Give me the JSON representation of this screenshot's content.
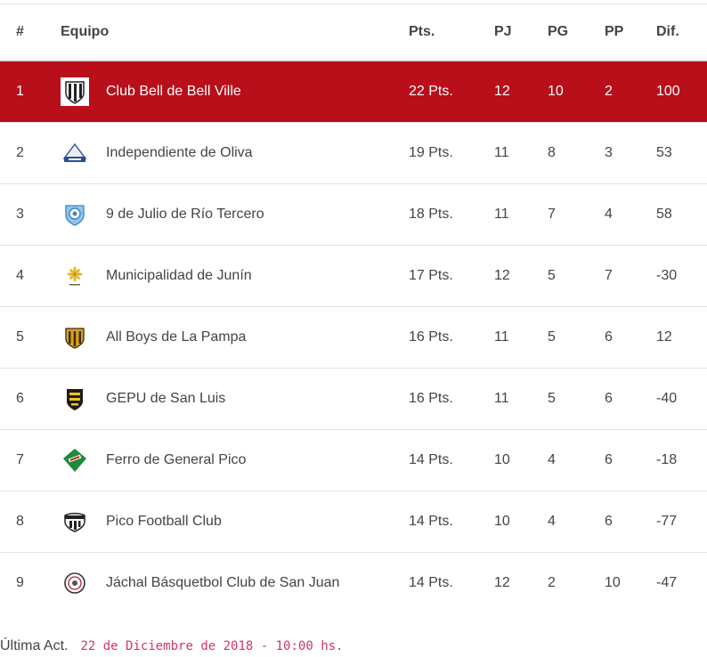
{
  "columns": {
    "rank": "#",
    "team": "Equipo",
    "points": "Pts.",
    "played": "PJ",
    "won": "PG",
    "lost": "PP",
    "diff": "Dif."
  },
  "rows": [
    {
      "rank": "1",
      "team": "Club Bell de Bell Ville",
      "points": "22 Pts.",
      "played": "12",
      "won": "10",
      "lost": "2",
      "diff": "100",
      "logo": "bell-ville-crest-icon"
    },
    {
      "rank": "2",
      "team": "Independiente de Oliva",
      "points": "19 Pts.",
      "played": "11",
      "won": "8",
      "lost": "3",
      "diff": "53",
      "logo": "independiente-oliva-crest-icon"
    },
    {
      "rank": "3",
      "team": "9 de Julio de Río Tercero",
      "points": "18 Pts.",
      "played": "11",
      "won": "7",
      "lost": "4",
      "diff": "58",
      "logo": "nueve-julio-crest-icon"
    },
    {
      "rank": "4",
      "team": "Municipalidad de Junín",
      "points": "17 Pts.",
      "played": "12",
      "won": "5",
      "lost": "7",
      "diff": "-30",
      "logo": "junin-flower-icon"
    },
    {
      "rank": "5",
      "team": "All Boys de La Pampa",
      "points": "16 Pts.",
      "played": "11",
      "won": "5",
      "lost": "6",
      "diff": "12",
      "logo": "all-boys-crest-icon"
    },
    {
      "rank": "6",
      "team": "GEPU de San Luis",
      "points": "16 Pts.",
      "played": "11",
      "won": "5",
      "lost": "6",
      "diff": "-40",
      "logo": "gepu-crest-icon"
    },
    {
      "rank": "7",
      "team": "Ferro de General Pico",
      "points": "14 Pts.",
      "played": "10",
      "won": "4",
      "lost": "6",
      "diff": "-18",
      "logo": "ferro-crest-icon"
    },
    {
      "rank": "8",
      "team": "Pico Football Club",
      "points": "14 Pts.",
      "played": "10",
      "won": "4",
      "lost": "6",
      "diff": "-77",
      "logo": "pico-fc-crest-icon"
    },
    {
      "rank": "9",
      "team": "Jáchal Básquetbol Club de San Juan",
      "points": "14 Pts.",
      "played": "12",
      "won": "2",
      "lost": "10",
      "diff": "-47",
      "logo": "jachal-crest-icon"
    }
  ],
  "footer": {
    "label": "Última Act.",
    "updated": "22 de Diciembre de 2018 - 10:00 hs."
  },
  "colors": {
    "leader_row": "#b80f1a",
    "footer_date": "#d6336c"
  }
}
